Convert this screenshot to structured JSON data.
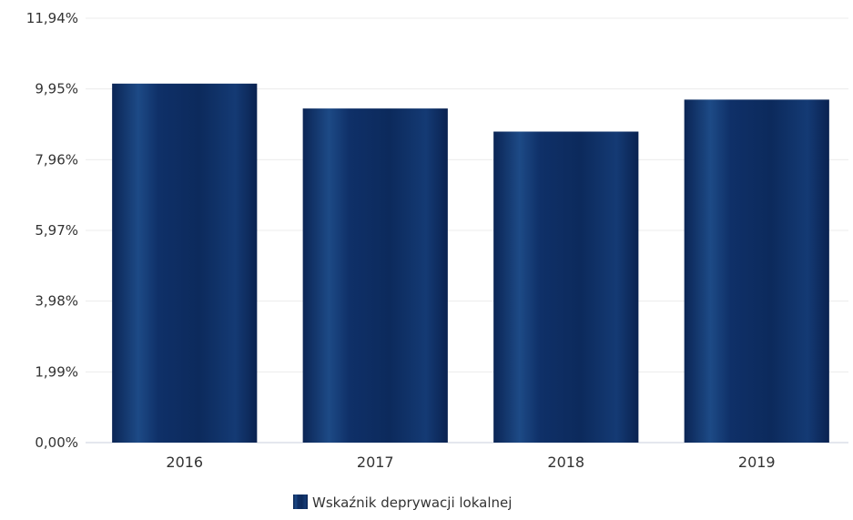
{
  "chart_data": {
    "type": "bar",
    "categories": [
      "2016",
      "2017",
      "2018",
      "2019"
    ],
    "series": [
      {
        "name": "Wskaźnik deprywacji lokalnej",
        "values": [
          10.1,
          9.4,
          8.75,
          9.65
        ],
        "color": "#0d2b5e"
      }
    ],
    "ylim": [
      0,
      11.94
    ],
    "yticks": [
      "0,00%",
      "1,99%",
      "3,98%",
      "5,97%",
      "7,96%",
      "9,95%",
      "11,94%"
    ],
    "ytick_values": [
      0,
      1.99,
      3.98,
      5.97,
      7.96,
      9.95,
      11.94
    ],
    "grid": true,
    "legend_position": "bottom-center"
  }
}
